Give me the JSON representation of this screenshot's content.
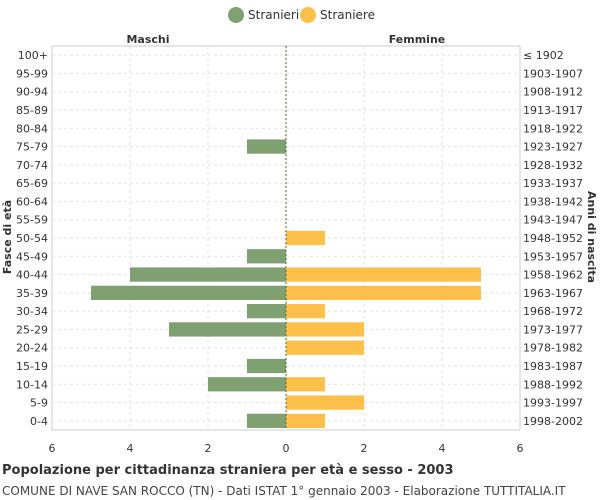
{
  "chart_data": {
    "type": "bar",
    "orientation": "horizontal",
    "title": "Popolazione per cittadinanza straniera per età e sesso - 2003",
    "subtitle": "COMUNE DI NAVE SAN ROCCO (TN) - Dati ISTAT 1° gennaio 2003 - Elaborazione TUTTITALIA.IT",
    "ylabel_left": "Fasce di età",
    "ylabel_right": "Anni di nascita",
    "side_label_left": "Maschi",
    "side_label_right": "Femmine",
    "xlim": [
      -6,
      6
    ],
    "xticks": [
      -6,
      -4,
      -2,
      0,
      2,
      4,
      6
    ],
    "xtick_labels": [
      "6",
      "4",
      "2",
      "0",
      "2",
      "4",
      "6"
    ],
    "grid": true,
    "legend_position": "top-center",
    "categories": [
      "100+",
      "95-99",
      "90-94",
      "85-89",
      "80-84",
      "75-79",
      "70-74",
      "65-69",
      "60-64",
      "55-59",
      "50-54",
      "45-49",
      "40-44",
      "35-39",
      "30-34",
      "25-29",
      "20-24",
      "15-19",
      "10-14",
      "5-9",
      "0-4"
    ],
    "birth_years": [
      "≤ 1902",
      "1903-1907",
      "1908-1912",
      "1913-1917",
      "1918-1922",
      "1923-1927",
      "1928-1932",
      "1933-1937",
      "1938-1942",
      "1943-1947",
      "1948-1952",
      "1953-1957",
      "1958-1962",
      "1963-1967",
      "1968-1972",
      "1973-1977",
      "1978-1982",
      "1983-1987",
      "1988-1992",
      "1993-1997",
      "1998-2002"
    ],
    "series": [
      {
        "name": "Stranieri",
        "color": "#7fa070",
        "side": "left",
        "values": [
          0,
          0,
          0,
          0,
          0,
          1,
          0,
          0,
          0,
          0,
          0,
          1,
          4,
          5,
          1,
          3,
          0,
          1,
          2,
          0,
          1
        ]
      },
      {
        "name": "Straniere",
        "color": "#fdc04a",
        "side": "right",
        "values": [
          0,
          0,
          0,
          0,
          0,
          0,
          0,
          0,
          0,
          0,
          1,
          0,
          5,
          5,
          1,
          2,
          2,
          0,
          1,
          2,
          1
        ]
      }
    ]
  }
}
